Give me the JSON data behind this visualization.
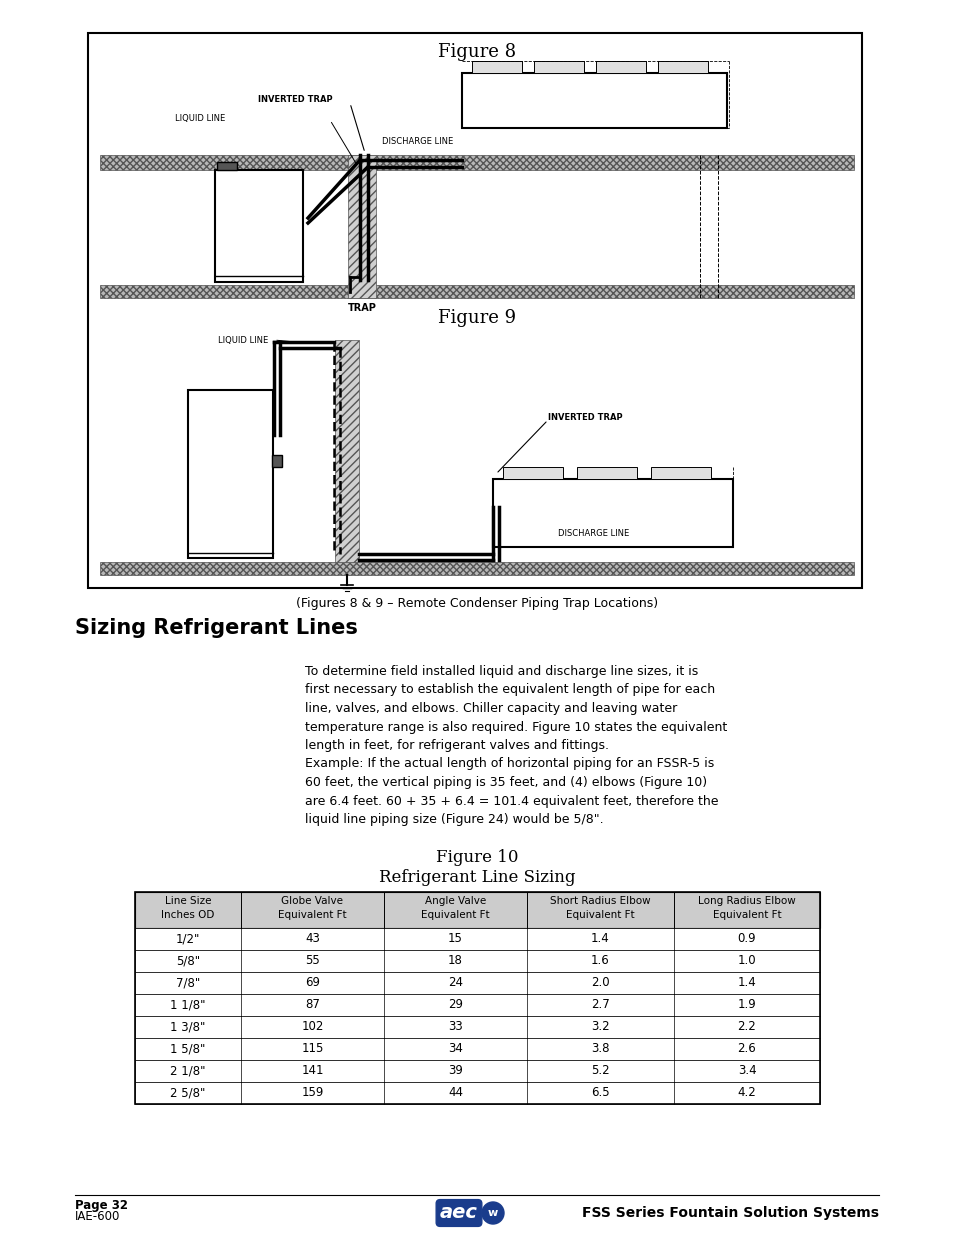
{
  "fig8_title": "Figure 8",
  "fig9_title": "Figure 9",
  "fig10_title": "Figure 10",
  "fig10_subtitle": "Refrigerant Line Sizing",
  "caption": "(Figures 8 & 9 – Remote Condenser Piping Trap Locations)",
  "section_title": "Sizing Refrigerant Lines",
  "body_para1": "To determine field installed liquid and discharge line sizes, it is first necessary to establish the equivalent length of pipe for each line, valves, and elbows. Chiller capacity and leaving water temperature range is also required. Figure 10 states the equivalent length in feet, for refrigerant valves and fittings.",
  "body_para2": "Example: If the actual length of horizontal piping for an FSSR-5 is 60 feet, the vertical piping is 35 feet, and (4) elbows (Figure 10) are 6.4 feet. 60 + 35 + 6.4 = 101.4 equivalent feet, therefore the liquid line piping size (Figure 24) would be 5/8\".",
  "table_headers": [
    "Line Size\nInches OD",
    "Globe Valve\nEquivalent Ft",
    "Angle Valve\nEquivalent Ft",
    "Short Radius Elbow\nEquivalent Ft",
    "Long Radius Elbow\nEquivalent Ft"
  ],
  "table_data": [
    [
      "1/2\"",
      "43",
      "15",
      "1.4",
      "0.9"
    ],
    [
      "5/8\"",
      "55",
      "18",
      "1.6",
      "1.0"
    ],
    [
      "7/8\"",
      "69",
      "24",
      "2.0",
      "1.4"
    ],
    [
      "1 1/8\"",
      "87",
      "29",
      "2.7",
      "1.9"
    ],
    [
      "1 3/8\"",
      "102",
      "33",
      "3.2",
      "2.2"
    ],
    [
      "1 5/8\"",
      "115",
      "34",
      "3.8",
      "2.6"
    ],
    [
      "2 1/8\"",
      "141",
      "39",
      "5.2",
      "3.4"
    ],
    [
      "2 5/8\"",
      "159",
      "44",
      "6.5",
      "4.2"
    ]
  ],
  "footer_left1": "Page 32",
  "footer_left2": "IAE-600",
  "footer_right": "FSS Series Fountain Solution Systems"
}
